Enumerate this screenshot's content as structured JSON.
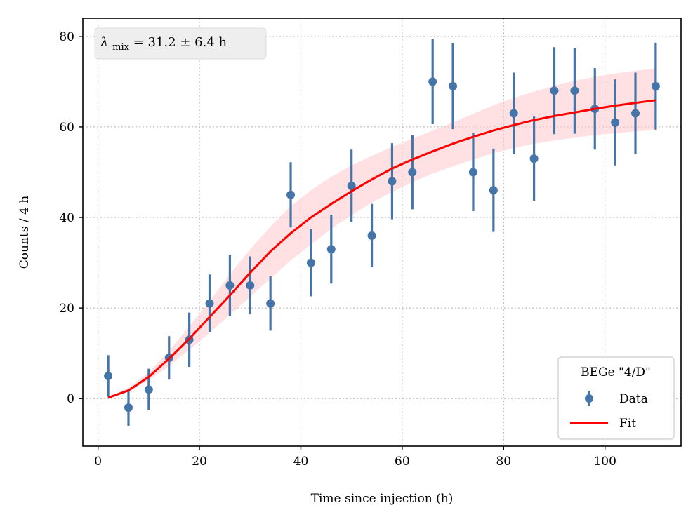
{
  "chart_data": {
    "type": "scatter",
    "xlabel": "Time since injection (h)",
    "ylabel": "Counts / 4 h",
    "xlim": [
      -3,
      115
    ],
    "ylim": [
      -10.5,
      84
    ],
    "xticks": [
      0,
      20,
      40,
      60,
      80,
      100
    ],
    "yticks": [
      0,
      20,
      40,
      60,
      80
    ],
    "grid": true,
    "legend": {
      "title": "BEGe \"4/D\"",
      "placement": "lower-right"
    },
    "annotation": {
      "symbol": "λ",
      "subscript": "mix",
      "text": "= 31.2 ± 6.4 h",
      "placement": "top-left"
    },
    "colors": {
      "data": "#4575a8",
      "fit": "#ff0000",
      "band": "#ffc8cc"
    },
    "series": [
      {
        "name": "Data",
        "kind": "errorbar",
        "x": [
          2,
          6,
          10,
          14,
          18,
          22,
          26,
          30,
          34,
          38,
          42,
          46,
          50,
          54,
          58,
          62,
          66,
          70,
          74,
          78,
          82,
          86,
          90,
          94,
          98,
          102,
          106,
          110
        ],
        "y": [
          5,
          -2,
          2,
          9,
          13,
          21,
          25,
          25,
          21,
          45,
          30,
          33,
          47,
          36,
          48,
          50,
          70,
          69,
          50,
          46,
          63,
          53,
          68,
          68,
          64,
          61,
          63,
          69
        ],
        "yerr": [
          4.6,
          4.0,
          4.6,
          4.8,
          6.0,
          6.4,
          6.8,
          6.4,
          6.0,
          7.2,
          7.4,
          7.6,
          8.0,
          7.0,
          8.4,
          8.2,
          9.4,
          9.5,
          8.6,
          9.2,
          9.0,
          9.3,
          9.6,
          9.5,
          9.0,
          9.5,
          9.0,
          9.6
        ]
      },
      {
        "name": "Fit",
        "kind": "line",
        "x": [
          2,
          6,
          10,
          14,
          18,
          22,
          26,
          30,
          34,
          38,
          42,
          46,
          50,
          54,
          58,
          62,
          66,
          70,
          74,
          78,
          82,
          86,
          90,
          94,
          98,
          102,
          106,
          110
        ],
        "y": [
          0.2,
          1.8,
          4.8,
          8.8,
          13.2,
          18.0,
          22.8,
          27.8,
          32.5,
          36.5,
          40.0,
          43.0,
          45.8,
          48.4,
          50.8,
          52.8,
          54.6,
          56.3,
          57.8,
          59.2,
          60.4,
          61.5,
          62.4,
          63.2,
          64.0,
          64.7,
          65.3,
          65.9
        ]
      },
      {
        "kind": "band",
        "x": [
          2,
          6,
          10,
          14,
          18,
          22,
          26,
          30,
          34,
          38,
          42,
          46,
          50,
          54,
          58,
          62,
          66,
          70,
          74,
          78,
          82,
          86,
          90,
          94,
          98,
          102,
          106,
          110
        ],
        "lower": [
          0.1,
          1.5,
          4.0,
          7.2,
          10.8,
          14.5,
          18.5,
          22.5,
          26.5,
          30.5,
          34.0,
          37.5,
          40.5,
          43.3,
          45.6,
          47.8,
          49.7,
          51.3,
          52.8,
          54.2,
          55.3,
          56.3,
          57.0,
          57.6,
          58.2,
          58.6,
          59.0,
          59.3
        ],
        "upper": [
          0.4,
          2.4,
          5.8,
          10.5,
          16.0,
          21.5,
          27.5,
          33.0,
          38.0,
          42.5,
          46.0,
          49.0,
          51.5,
          53.6,
          55.6,
          57.4,
          59.2,
          61.0,
          62.9,
          64.8,
          66.4,
          67.8,
          69.1,
          70.2,
          71.1,
          71.8,
          72.4,
          72.9
        ]
      }
    ]
  }
}
